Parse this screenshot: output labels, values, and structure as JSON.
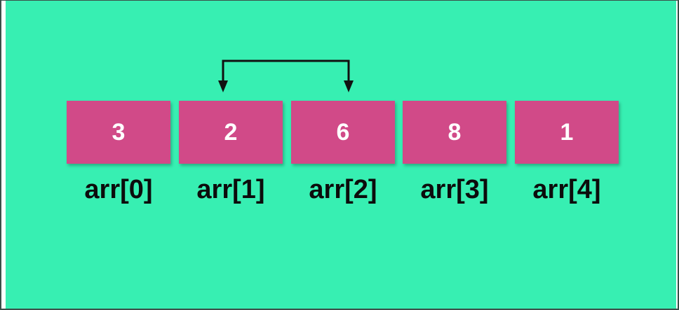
{
  "array": {
    "cells": [
      {
        "value": "3",
        "label": "arr[0]"
      },
      {
        "value": "2",
        "label": "arr[1]"
      },
      {
        "value": "6",
        "label": "arr[2]"
      },
      {
        "value": "8",
        "label": "arr[3]"
      },
      {
        "value": "1",
        "label": "arr[4]"
      }
    ],
    "swap_arrow": {
      "from_index": 1,
      "to_index": 2
    }
  },
  "colors": {
    "background": "#37efb2",
    "cell_fill": "#d14a88",
    "cell_text": "#ffffff",
    "label_text": "#0c0c0c",
    "arrow": "#111111"
  }
}
